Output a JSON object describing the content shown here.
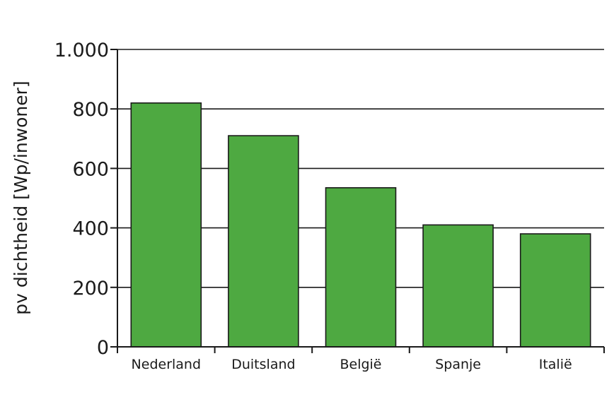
{
  "chart_data": {
    "type": "bar",
    "title": "",
    "xlabel": "",
    "ylabel": "pv dichtheid [Wp/inwoner]",
    "categories": [
      "Nederland",
      "Duitsland",
      "België",
      "Spanje",
      "Italië"
    ],
    "values": [
      820,
      710,
      535,
      410,
      380
    ],
    "ylim": [
      0,
      1000
    ],
    "yticks": [
      0,
      200,
      400,
      600,
      800,
      1000
    ],
    "ytick_labels": [
      "0",
      "200",
      "400",
      "600",
      "800",
      "1.000"
    ],
    "grid": true,
    "legend": "none",
    "bar_color": "#4ea941",
    "edge_color": "#1a1a1a"
  }
}
